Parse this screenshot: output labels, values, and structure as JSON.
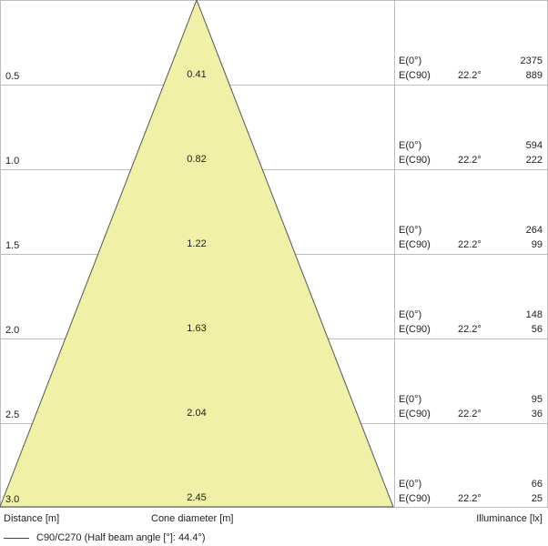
{
  "footer": {
    "distance_label": "Distance [m]",
    "cone_label": "Cone diameter [m]",
    "illuminance_label": "Illuminance [lx]"
  },
  "legend": {
    "text": "C90/C270 (Half beam angle [°]: 44.4°)"
  },
  "colors": {
    "cone_fill": "#f0f0a6",
    "cone_stroke": "#555555",
    "grid": "#bdbdbd"
  },
  "rows": [
    {
      "distance": "0.5",
      "cone": "0.41",
      "e0_label": "E(0°)",
      "e90_label": "E(C90)",
      "angle": "22.2°",
      "e0": "2375",
      "e90": "889"
    },
    {
      "distance": "1.0",
      "cone": "0.82",
      "e0_label": "E(0°)",
      "e90_label": "E(C90)",
      "angle": "22.2°",
      "e0": "594",
      "e90": "222"
    },
    {
      "distance": "1.5",
      "cone": "1.22",
      "e0_label": "E(0°)",
      "e90_label": "E(C90)",
      "angle": "22.2°",
      "e0": "264",
      "e90": "99"
    },
    {
      "distance": "2.0",
      "cone": "1.63",
      "e0_label": "E(0°)",
      "e90_label": "E(C90)",
      "angle": "22.2°",
      "e0": "148",
      "e90": "56"
    },
    {
      "distance": "2.5",
      "cone": "2.04",
      "e0_label": "E(0°)",
      "e90_label": "E(C90)",
      "angle": "22.2°",
      "e0": "95",
      "e90": "36"
    },
    {
      "distance": "3.0",
      "cone": "2.45",
      "e0_label": "E(0°)",
      "e90_label": "E(C90)",
      "angle": "22.2°",
      "e0": "66",
      "e90": "25"
    }
  ]
}
